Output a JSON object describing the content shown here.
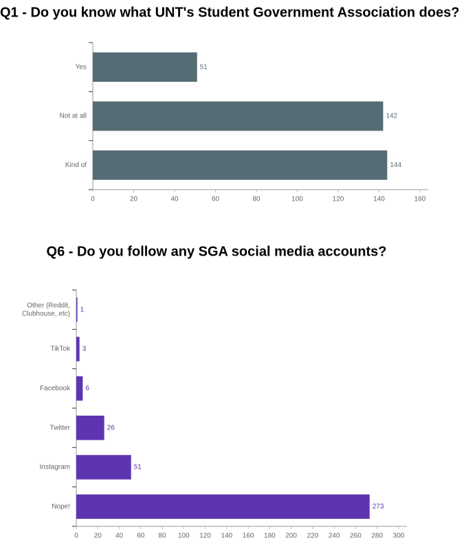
{
  "chart_data": [
    {
      "type": "bar",
      "orientation": "horizontal",
      "title": "Q1 - Do you know what UNT's Student Government Association does?",
      "categories": [
        "Yes",
        "Not at all",
        "Kind of"
      ],
      "values": [
        51,
        142,
        144
      ],
      "color": "#566c75",
      "xlim": [
        0,
        160
      ],
      "xticks": [
        0,
        20,
        40,
        60,
        80,
        100,
        120,
        140,
        160
      ],
      "grid": false
    },
    {
      "type": "bar",
      "orientation": "horizontal",
      "title": "Q6 - Do you follow any SGA social media accounts?",
      "categories": [
        "Other (Reddit, Clubhouse, etc)",
        "TikTok",
        "Facebook",
        "Twitter",
        "Instagram",
        "Nope!"
      ],
      "values": [
        1,
        3,
        6,
        26,
        51,
        273
      ],
      "color": "#5e35b1",
      "xlim": [
        0,
        300
      ],
      "xticks": [
        0,
        20,
        40,
        60,
        80,
        100,
        120,
        140,
        160,
        180,
        200,
        220,
        240,
        260,
        280,
        300
      ],
      "grid": false
    }
  ]
}
